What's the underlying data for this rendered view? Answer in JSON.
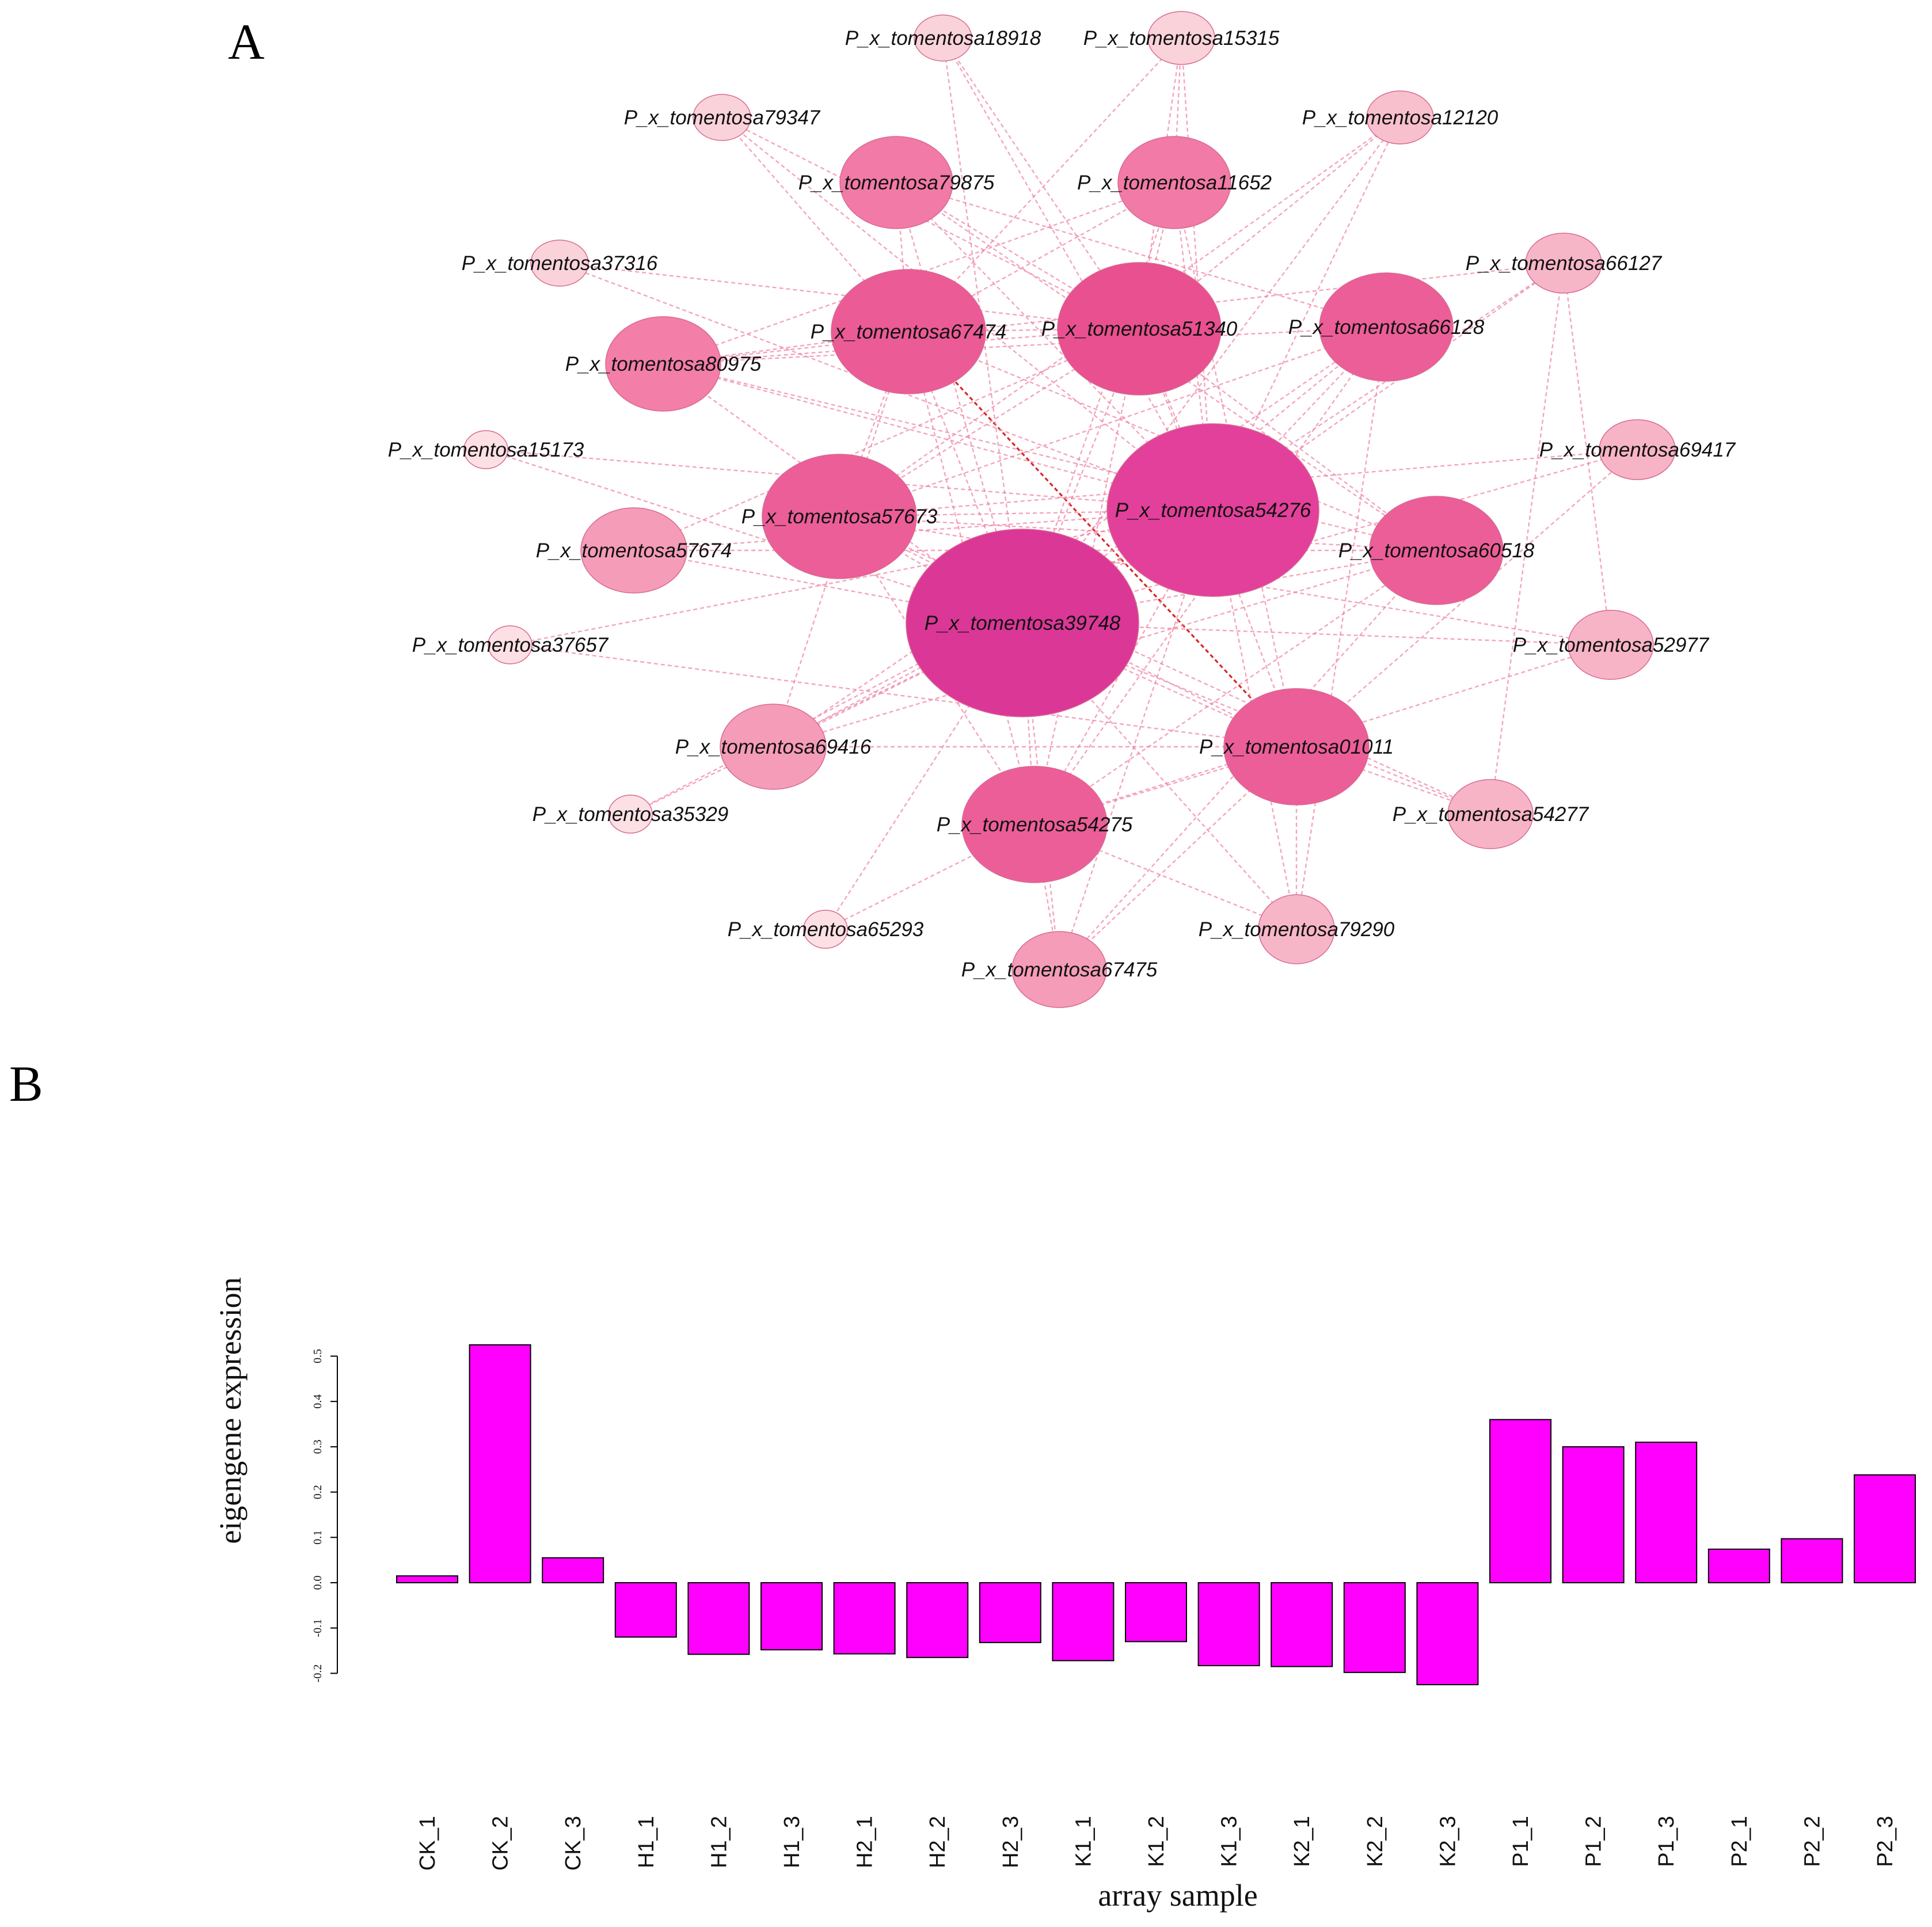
{
  "panels": {
    "a": "A",
    "b": "B"
  },
  "colors": {
    "bar_fill": "#ff00ff",
    "edge": "#ee7f9f",
    "edge_highlight": "#d81a1a",
    "node_stroke": "#d76a92"
  },
  "network": {
    "nodes": [
      {
        "id": "P_x_tomentosa18918",
        "label": "P_x_tomentosa18918",
        "degree": 1,
        "color": "#fad2da"
      },
      {
        "id": "P_x_tomentosa15315",
        "label": "P_x_tomentosa15315",
        "degree": 1,
        "color": "#fad2da"
      },
      {
        "id": "P_x_tomentosa79347",
        "label": "P_x_tomentosa79347",
        "degree": 1,
        "color": "#fad2da"
      },
      {
        "id": "P_x_tomentosa12120",
        "label": "P_x_tomentosa12120",
        "degree": 2,
        "color": "#f8c0cc"
      },
      {
        "id": "P_x_tomentosa79875",
        "label": "P_x_tomentosa79875",
        "degree": 6,
        "color": "#f27aa6"
      },
      {
        "id": "P_x_tomentosa11652",
        "label": "P_x_tomentosa11652",
        "degree": 6,
        "color": "#f27aa6"
      },
      {
        "id": "P_x_tomentosa37316",
        "label": "P_x_tomentosa37316",
        "degree": 1,
        "color": "#fad2da"
      },
      {
        "id": "P_x_tomentosa66127",
        "label": "P_x_tomentosa66127",
        "degree": 3,
        "color": "#f7b6c8"
      },
      {
        "id": "P_x_tomentosa67474",
        "label": "P_x_tomentosa67474",
        "degree": 8,
        "color": "#eb5b96"
      },
      {
        "id": "P_x_tomentosa51340",
        "label": "P_x_tomentosa51340",
        "degree": 9,
        "color": "#e8508f"
      },
      {
        "id": "P_x_tomentosa66128",
        "label": "P_x_tomentosa66128",
        "degree": 7,
        "color": "#ec5e98"
      },
      {
        "id": "P_x_tomentosa80975",
        "label": "P_x_tomentosa80975",
        "degree": 6,
        "color": "#f37ea8"
      },
      {
        "id": "P_x_tomentosa15173",
        "label": "P_x_tomentosa15173",
        "degree": 0.5,
        "color": "#fce0e4"
      },
      {
        "id": "P_x_tomentosa69417",
        "label": "P_x_tomentosa69417",
        "degree": 3,
        "color": "#f7b4c6"
      },
      {
        "id": "P_x_tomentosa57673",
        "label": "P_x_tomentosa57673",
        "degree": 8,
        "color": "#ec5e98"
      },
      {
        "id": "P_x_tomentosa54276",
        "label": "P_x_tomentosa54276",
        "degree": 14,
        "color": "#e2409a"
      },
      {
        "id": "P_x_tomentosa57674",
        "label": "P_x_tomentosa57674",
        "degree": 5,
        "color": "#f59cb8"
      },
      {
        "id": "P_x_tomentosa60518",
        "label": "P_x_tomentosa60518",
        "degree": 7,
        "color": "#ec5e98"
      },
      {
        "id": "P_x_tomentosa39748",
        "label": "P_x_tomentosa39748",
        "degree": 15,
        "color": "#db3797"
      },
      {
        "id": "P_x_tomentosa37657",
        "label": "P_x_tomentosa37657",
        "degree": 0.5,
        "color": "#fce0e4"
      },
      {
        "id": "P_x_tomentosa52977",
        "label": "P_x_tomentosa52977",
        "degree": 3,
        "color": "#f7b4c6"
      },
      {
        "id": "P_x_tomentosa69416",
        "label": "P_x_tomentosa69416",
        "degree": 4,
        "color": "#f59cb8"
      },
      {
        "id": "P_x_tomentosa01011",
        "label": "P_x_tomentosa01011",
        "degree": 8,
        "color": "#ec5e98"
      },
      {
        "id": "P_x_tomentosa35329",
        "label": "P_x_tomentosa35329",
        "degree": 0.5,
        "color": "#fce0e4"
      },
      {
        "id": "P_x_tomentosa54275",
        "label": "P_x_tomentosa54275",
        "degree": 8,
        "color": "#ec5e98"
      },
      {
        "id": "P_x_tomentosa54277",
        "label": "P_x_tomentosa54277",
        "degree": 3,
        "color": "#f7b4c6"
      },
      {
        "id": "P_x_tomentosa65293",
        "label": "P_x_tomentosa65293",
        "degree": 0.5,
        "color": "#fce0e4"
      },
      {
        "id": "P_x_tomentosa79290",
        "label": "P_x_tomentosa79290",
        "degree": 3,
        "color": "#f7b6c8"
      },
      {
        "id": "P_x_tomentosa67475",
        "label": "P_x_tomentosa67475",
        "degree": 4,
        "color": "#f59cb8"
      }
    ],
    "edges": [
      [
        "P_x_tomentosa67474",
        "P_x_tomentosa01011",
        "highlight"
      ],
      [
        "P_x_tomentosa18918",
        "P_x_tomentosa51340"
      ],
      [
        "P_x_tomentosa18918",
        "P_x_tomentosa39748"
      ],
      [
        "P_x_tomentosa18918",
        "P_x_tomentosa54276"
      ],
      [
        "P_x_tomentosa15315",
        "P_x_tomentosa11652"
      ],
      [
        "P_x_tomentosa15315",
        "P_x_tomentosa67474"
      ],
      [
        "P_x_tomentosa15315",
        "P_x_tomentosa54276"
      ],
      [
        "P_x_tomentosa15315",
        "P_x_tomentosa51340"
      ],
      [
        "P_x_tomentosa79347",
        "P_x_tomentosa51340"
      ],
      [
        "P_x_tomentosa79347",
        "P_x_tomentosa67474"
      ],
      [
        "P_x_tomentosa79347",
        "P_x_tomentosa54276"
      ],
      [
        "P_x_tomentosa12120",
        "P_x_tomentosa54276"
      ],
      [
        "P_x_tomentosa12120",
        "P_x_tomentosa51340"
      ],
      [
        "P_x_tomentosa12120",
        "P_x_tomentosa39748"
      ],
      [
        "P_x_tomentosa12120",
        "P_x_tomentosa57673"
      ],
      [
        "P_x_tomentosa79875",
        "P_x_tomentosa51340"
      ],
      [
        "P_x_tomentosa79875",
        "P_x_tomentosa67474"
      ],
      [
        "P_x_tomentosa79875",
        "P_x_tomentosa54276"
      ],
      [
        "P_x_tomentosa79875",
        "P_x_tomentosa66128"
      ],
      [
        "P_x_tomentosa79875",
        "P_x_tomentosa39748"
      ],
      [
        "P_x_tomentosa79875",
        "P_x_tomentosa60518"
      ],
      [
        "P_x_tomentosa11652",
        "P_x_tomentosa51340"
      ],
      [
        "P_x_tomentosa11652",
        "P_x_tomentosa54276"
      ],
      [
        "P_x_tomentosa11652",
        "P_x_tomentosa67474"
      ],
      [
        "P_x_tomentosa11652",
        "P_x_tomentosa80975"
      ],
      [
        "P_x_tomentosa11652",
        "P_x_tomentosa39748"
      ],
      [
        "P_x_tomentosa11652",
        "P_x_tomentosa01011"
      ],
      [
        "P_x_tomentosa37316",
        "P_x_tomentosa51340"
      ],
      [
        "P_x_tomentosa37316",
        "P_x_tomentosa54276"
      ],
      [
        "P_x_tomentosa66127",
        "P_x_tomentosa54276"
      ],
      [
        "P_x_tomentosa66127",
        "P_x_tomentosa80975"
      ],
      [
        "P_x_tomentosa66127",
        "P_x_tomentosa52977"
      ],
      [
        "P_x_tomentosa66127",
        "P_x_tomentosa39748"
      ],
      [
        "P_x_tomentosa67474",
        "P_x_tomentosa51340"
      ],
      [
        "P_x_tomentosa67474",
        "P_x_tomentosa39748"
      ],
      [
        "P_x_tomentosa67474",
        "P_x_tomentosa57673"
      ],
      [
        "P_x_tomentosa67474",
        "P_x_tomentosa54275"
      ],
      [
        "P_x_tomentosa67474",
        "P_x_tomentosa60518"
      ],
      [
        "P_x_tomentosa67474",
        "P_x_tomentosa69416"
      ],
      [
        "P_x_tomentosa51340",
        "P_x_tomentosa54276"
      ],
      [
        "P_x_tomentosa51340",
        "P_x_tomentosa39748"
      ],
      [
        "P_x_tomentosa51340",
        "P_x_tomentosa57673"
      ],
      [
        "P_x_tomentosa51340",
        "P_x_tomentosa80975"
      ],
      [
        "P_x_tomentosa51340",
        "P_x_tomentosa54275"
      ],
      [
        "P_x_tomentosa51340",
        "P_x_tomentosa01011"
      ],
      [
        "P_x_tomentosa51340",
        "P_x_tomentosa60518"
      ],
      [
        "P_x_tomentosa66128",
        "P_x_tomentosa54276"
      ],
      [
        "P_x_tomentosa66128",
        "P_x_tomentosa39748"
      ],
      [
        "P_x_tomentosa66128",
        "P_x_tomentosa57673"
      ],
      [
        "P_x_tomentosa66128",
        "P_x_tomentosa80975"
      ],
      [
        "P_x_tomentosa66128",
        "P_x_tomentosa54275"
      ],
      [
        "P_x_tomentosa66128",
        "P_x_tomentosa69416"
      ],
      [
        "P_x_tomentosa80975",
        "P_x_tomentosa54276"
      ],
      [
        "P_x_tomentosa80975",
        "P_x_tomentosa39748"
      ],
      [
        "P_x_tomentosa80975",
        "P_x_tomentosa60518"
      ],
      [
        "P_x_tomentosa80975",
        "P_x_tomentosa67474"
      ],
      [
        "P_x_tomentosa15173",
        "P_x_tomentosa54276"
      ],
      [
        "P_x_tomentosa15173",
        "P_x_tomentosa39748"
      ],
      [
        "P_x_tomentosa69417",
        "P_x_tomentosa57673"
      ],
      [
        "P_x_tomentosa69417",
        "P_x_tomentosa39748"
      ],
      [
        "P_x_tomentosa69417",
        "P_x_tomentosa01011"
      ],
      [
        "P_x_tomentosa57673",
        "P_x_tomentosa54276"
      ],
      [
        "P_x_tomentosa57673",
        "P_x_tomentosa39748"
      ],
      [
        "P_x_tomentosa57673",
        "P_x_tomentosa54275"
      ],
      [
        "P_x_tomentosa57673",
        "P_x_tomentosa01011"
      ],
      [
        "P_x_tomentosa57673",
        "P_x_tomentosa60518"
      ],
      [
        "P_x_tomentosa54276",
        "P_x_tomentosa39748"
      ],
      [
        "P_x_tomentosa54276",
        "P_x_tomentosa54275"
      ],
      [
        "P_x_tomentosa54276",
        "P_x_tomentosa69416"
      ],
      [
        "P_x_tomentosa54276",
        "P_x_tomentosa57674"
      ],
      [
        "P_x_tomentosa54276",
        "P_x_tomentosa79290"
      ],
      [
        "P_x_tomentosa54276",
        "P_x_tomentosa67475"
      ],
      [
        "P_x_tomentosa54276",
        "P_x_tomentosa35329"
      ],
      [
        "P_x_tomentosa57674",
        "P_x_tomentosa39748"
      ],
      [
        "P_x_tomentosa57674",
        "P_x_tomentosa60518"
      ],
      [
        "P_x_tomentosa57674",
        "P_x_tomentosa51340"
      ],
      [
        "P_x_tomentosa60518",
        "P_x_tomentosa39748"
      ],
      [
        "P_x_tomentosa60518",
        "P_x_tomentosa54275"
      ],
      [
        "P_x_tomentosa60518",
        "P_x_tomentosa69416"
      ],
      [
        "P_x_tomentosa60518",
        "P_x_tomentosa67475"
      ],
      [
        "P_x_tomentosa39748",
        "P_x_tomentosa01011"
      ],
      [
        "P_x_tomentosa39748",
        "P_x_tomentosa54275"
      ],
      [
        "P_x_tomentosa39748",
        "P_x_tomentosa52977"
      ],
      [
        "P_x_tomentosa39748",
        "P_x_tomentosa54277"
      ],
      [
        "P_x_tomentosa39748",
        "P_x_tomentosa67475"
      ],
      [
        "P_x_tomentosa39748",
        "P_x_tomentosa79290"
      ],
      [
        "P_x_tomentosa39748",
        "P_x_tomentosa65293"
      ],
      [
        "P_x_tomentosa37657",
        "P_x_tomentosa54276"
      ],
      [
        "P_x_tomentosa37657",
        "P_x_tomentosa01011"
      ],
      [
        "P_x_tomentosa52977",
        "P_x_tomentosa57673"
      ],
      [
        "P_x_tomentosa52977",
        "P_x_tomentosa54275"
      ],
      [
        "P_x_tomentosa69416",
        "P_x_tomentosa39748"
      ],
      [
        "P_x_tomentosa69416",
        "P_x_tomentosa01011"
      ],
      [
        "P_x_tomentosa01011",
        "P_x_tomentosa54275"
      ],
      [
        "P_x_tomentosa01011",
        "P_x_tomentosa54277"
      ],
      [
        "P_x_tomentosa01011",
        "P_x_tomentosa79290"
      ],
      [
        "P_x_tomentosa01011",
        "P_x_tomentosa67475"
      ],
      [
        "P_x_tomentosa35329",
        "P_x_tomentosa39748"
      ],
      [
        "P_x_tomentosa54275",
        "P_x_tomentosa67475"
      ],
      [
        "P_x_tomentosa54275",
        "P_x_tomentosa79290"
      ],
      [
        "P_x_tomentosa54277",
        "P_x_tomentosa57673"
      ],
      [
        "P_x_tomentosa54277",
        "P_x_tomentosa66127"
      ],
      [
        "P_x_tomentosa65293",
        "P_x_tomentosa54275"
      ],
      [
        "P_x_tomentosa79290",
        "P_x_tomentosa66128"
      ]
    ]
  },
  "chart_data": {
    "type": "bar",
    "title": "",
    "xlabel": "array sample",
    "ylabel": "eigengene expression",
    "ylim": [
      -0.2,
      0.5
    ],
    "yticks": [
      -0.2,
      -0.1,
      0.0,
      0.1,
      0.2,
      0.3,
      0.4,
      0.5
    ],
    "ytick_labels": [
      "-0.2",
      "-0.1",
      "0.0",
      "0.1",
      "0.2",
      "0.3",
      "0.4",
      "0.5"
    ],
    "grid": false,
    "categories": [
      "CK_1",
      "CK_2",
      "CK_3",
      "H1_1",
      "H1_2",
      "H1_3",
      "H2_1",
      "H2_2",
      "H2_3",
      "K1_1",
      "K1_2",
      "K1_3",
      "K2_1",
      "K2_2",
      "K2_3",
      "P1_1",
      "P1_2",
      "P1_3",
      "P2_1",
      "P2_2",
      "P2_3"
    ],
    "values": [
      0.015,
      0.525,
      0.055,
      -0.12,
      -0.158,
      -0.148,
      -0.157,
      -0.165,
      -0.132,
      -0.172,
      -0.13,
      -0.183,
      -0.185,
      -0.198,
      -0.225,
      0.36,
      0.3,
      0.31,
      0.074,
      0.097,
      0.238
    ]
  }
}
